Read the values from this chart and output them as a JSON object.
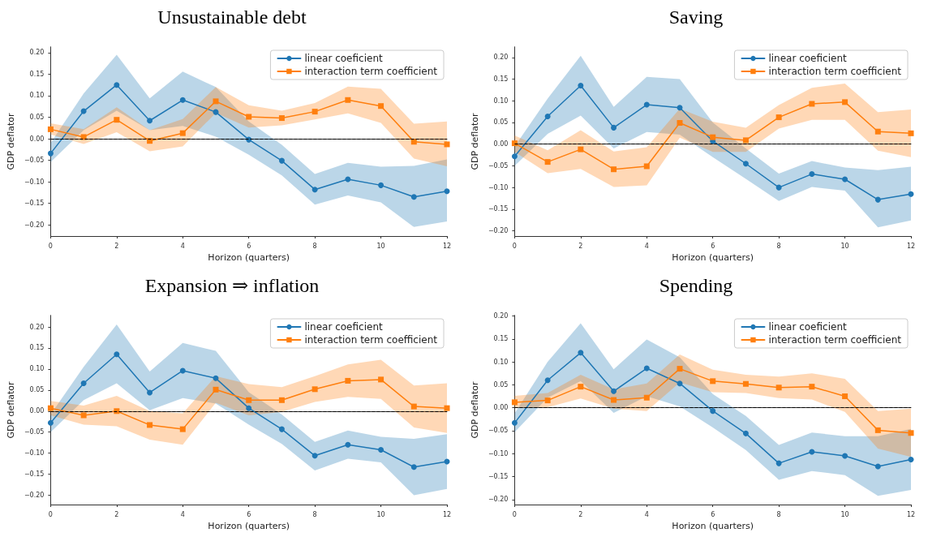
{
  "chart_data": [
    {
      "type": "line",
      "title": "Unsustainable debt",
      "xlabel": "Horizon (quarters)",
      "ylabel": "GDP deflator",
      "x": [
        0,
        1,
        2,
        3,
        4,
        5,
        6,
        7,
        8,
        9,
        10,
        11,
        12
      ],
      "xlim": [
        0,
        12
      ],
      "xticks": [
        0,
        2,
        4,
        6,
        8,
        10,
        12
      ],
      "ylim": [
        -0.226,
        0.213
      ],
      "yticks": [
        {
          "value": -0.2,
          "label": "−0.20"
        },
        {
          "value": -0.15,
          "label": "−0.15"
        },
        {
          "value": -0.1,
          "label": "−0.10"
        },
        {
          "value": -0.05,
          "label": "−0.05"
        },
        {
          "value": 0,
          "label": "0.00"
        },
        {
          "value": 0.05,
          "label": "0.05"
        },
        {
          "value": 0.1,
          "label": "0.10"
        },
        {
          "value": 0.15,
          "label": "0.15"
        },
        {
          "value": 0.2,
          "label": "0.20"
        }
      ],
      "legend": "top right",
      "grid": false,
      "line_style": "solid",
      "ref_lines": [
        {
          "axis": "y",
          "value": 0,
          "color": "#000000",
          "line_style": "dashed"
        }
      ],
      "series": [
        {
          "name": "linear coeficient",
          "color": "#1f77b4",
          "marker": "circle",
          "values": [
            -0.034,
            0.064,
            0.125,
            0.042,
            0.09,
            0.062,
            -0.002,
            -0.051,
            -0.118,
            -0.094,
            -0.108,
            -0.135,
            -0.122
          ],
          "lower": [
            -0.054,
            0.02,
            0.065,
            0.02,
            0.03,
            0.005,
            -0.037,
            -0.085,
            -0.153,
            -0.132,
            -0.148,
            -0.205,
            -0.192
          ],
          "upper": [
            -0.01,
            0.105,
            0.195,
            0.094,
            0.156,
            0.12,
            0.04,
            -0.014,
            -0.082,
            -0.056,
            -0.065,
            -0.063,
            -0.048
          ]
        },
        {
          "name": "interaction term coefficient",
          "color": "#ff7f0e",
          "marker": "square",
          "values": [
            0.022,
            0.004,
            0.044,
            -0.005,
            0.013,
            0.087,
            0.051,
            0.048,
            0.063,
            0.09,
            0.076,
            -0.007,
            -0.013
          ],
          "lower": [
            0.01,
            -0.012,
            0.015,
            -0.029,
            -0.018,
            0.06,
            0.026,
            0.031,
            0.045,
            0.059,
            0.037,
            -0.046,
            -0.064
          ],
          "upper": [
            0.036,
            0.022,
            0.073,
            0.02,
            0.046,
            0.12,
            0.078,
            0.065,
            0.083,
            0.121,
            0.116,
            0.035,
            0.04
          ]
        }
      ]
    },
    {
      "type": "line",
      "title": "Saving",
      "xlabel": "Horizon (quarters)",
      "ylabel": "GDP deflator",
      "x": [
        0,
        1,
        2,
        3,
        4,
        5,
        6,
        7,
        8,
        9,
        10,
        11,
        12
      ],
      "xlim": [
        0,
        12
      ],
      "xticks": [
        0,
        2,
        4,
        6,
        8,
        10,
        12
      ],
      "ylim": [
        -0.212,
        0.224
      ],
      "yticks": [
        {
          "value": -0.2,
          "label": "−0.20"
        },
        {
          "value": -0.15,
          "label": "−0.15"
        },
        {
          "value": -0.1,
          "label": "−0.10"
        },
        {
          "value": -0.05,
          "label": "−0.05"
        },
        {
          "value": 0,
          "label": "0.00"
        },
        {
          "value": 0.05,
          "label": "0.05"
        },
        {
          "value": 0.1,
          "label": "0.10"
        },
        {
          "value": 0.15,
          "label": "0.15"
        },
        {
          "value": 0.2,
          "label": "0.20"
        }
      ],
      "legend": "top right",
      "grid": false,
      "line_style": "solid",
      "ref_lines": [
        {
          "axis": "y",
          "value": 0,
          "color": "#000000",
          "line_style": "dashed"
        }
      ],
      "series": [
        {
          "name": "linear coeficient",
          "color": "#1f77b4",
          "marker": "circle",
          "values": [
            -0.028,
            0.064,
            0.135,
            0.038,
            0.091,
            0.084,
            0.007,
            -0.045,
            -0.1,
            -0.069,
            -0.081,
            -0.128,
            -0.115
          ],
          "lower": [
            -0.05,
            0.024,
            0.066,
            -0.01,
            0.028,
            0.022,
            -0.03,
            -0.08,
            -0.131,
            -0.099,
            -0.107,
            -0.192,
            -0.176
          ],
          "upper": [
            -0.005,
            0.105,
            0.204,
            0.086,
            0.155,
            0.15,
            0.05,
            -0.01,
            -0.068,
            -0.039,
            -0.054,
            -0.06,
            -0.052
          ]
        },
        {
          "name": "interaction term coefficient",
          "color": "#ff7f0e",
          "marker": "square",
          "values": [
            0.002,
            -0.041,
            -0.012,
            -0.058,
            -0.051,
            0.049,
            0.016,
            0.009,
            0.062,
            0.093,
            0.097,
            0.029,
            0.025
          ],
          "lower": [
            -0.018,
            -0.067,
            -0.057,
            -0.099,
            -0.095,
            0.015,
            -0.018,
            -0.018,
            0.036,
            0.056,
            0.056,
            -0.015,
            -0.03
          ],
          "upper": [
            0.02,
            -0.014,
            0.032,
            -0.017,
            -0.007,
            0.082,
            0.052,
            0.038,
            0.09,
            0.13,
            0.14,
            0.074,
            0.08
          ]
        }
      ]
    },
    {
      "type": "line",
      "title": "Expansion ⇒ inflation",
      "xlabel": "Horizon (quarters)",
      "ylabel": "GDP deflator",
      "x": [
        0,
        1,
        2,
        3,
        4,
        5,
        6,
        7,
        8,
        9,
        10,
        11,
        12
      ],
      "xlim": [
        0,
        12
      ],
      "xticks": [
        0,
        2,
        4,
        6,
        8,
        10,
        12
      ],
      "ylim": [
        -0.222,
        0.227
      ],
      "yticks": [
        {
          "value": -0.2,
          "label": "−0.20"
        },
        {
          "value": -0.15,
          "label": "−0.15"
        },
        {
          "value": -0.1,
          "label": "−0.10"
        },
        {
          "value": -0.05,
          "label": "−0.05"
        },
        {
          "value": 0,
          "label": "0.00"
        },
        {
          "value": 0.05,
          "label": "0.05"
        },
        {
          "value": 0.1,
          "label": "0.10"
        },
        {
          "value": 0.15,
          "label": "0.15"
        },
        {
          "value": 0.2,
          "label": "0.20"
        }
      ],
      "legend": "top right",
      "grid": false,
      "line_style": "solid",
      "ref_lines": [
        {
          "axis": "y",
          "value": 0,
          "color": "#000000",
          "line_style": "dashed"
        }
      ],
      "series": [
        {
          "name": "linear coeficient",
          "color": "#1f77b4",
          "marker": "circle",
          "values": [
            -0.028,
            0.066,
            0.135,
            0.044,
            0.096,
            0.078,
            0.007,
            -0.043,
            -0.106,
            -0.08,
            -0.092,
            -0.133,
            -0.12
          ],
          "lower": [
            -0.05,
            0.026,
            0.066,
            0.002,
            0.031,
            0.018,
            -0.032,
            -0.078,
            -0.141,
            -0.113,
            -0.122,
            -0.2,
            -0.185
          ],
          "upper": [
            -0.008,
            0.105,
            0.206,
            0.094,
            0.162,
            0.143,
            0.045,
            -0.008,
            -0.073,
            -0.046,
            -0.061,
            -0.066,
            -0.055
          ]
        },
        {
          "name": "interaction term coefficient",
          "color": "#ff7f0e",
          "marker": "square",
          "values": [
            0.007,
            -0.01,
            0.0,
            -0.033,
            -0.043,
            0.051,
            0.026,
            0.026,
            0.052,
            0.072,
            0.075,
            0.011,
            0.007
          ],
          "lower": [
            -0.01,
            -0.032,
            -0.036,
            -0.068,
            -0.08,
            0.02,
            -0.01,
            -0.002,
            0.022,
            0.034,
            0.029,
            -0.039,
            -0.052
          ],
          "upper": [
            0.024,
            0.013,
            0.036,
            0.0,
            -0.005,
            0.083,
            0.064,
            0.057,
            0.083,
            0.111,
            0.122,
            0.061,
            0.066
          ]
        }
      ]
    },
    {
      "type": "line",
      "title": "Spending",
      "xlabel": "Horizon (quarters)",
      "ylabel": "GDP deflator",
      "x": [
        0,
        1,
        2,
        3,
        4,
        5,
        6,
        7,
        8,
        9,
        10,
        11,
        12
      ],
      "xlim": [
        0,
        12
      ],
      "xticks": [
        0,
        2,
        4,
        6,
        8,
        10,
        12
      ],
      "ylim": [
        -0.211,
        0.201
      ],
      "yticks": [
        {
          "value": -0.2,
          "label": "−0.20"
        },
        {
          "value": -0.15,
          "label": "−0.15"
        },
        {
          "value": -0.1,
          "label": "−0.10"
        },
        {
          "value": -0.05,
          "label": "−0.05"
        },
        {
          "value": 0,
          "label": "0.00"
        },
        {
          "value": 0.05,
          "label": "0.05"
        },
        {
          "value": 0.1,
          "label": "0.10"
        },
        {
          "value": 0.15,
          "label": "0.15"
        },
        {
          "value": 0.2,
          "label": "0.20"
        }
      ],
      "legend": "top right",
      "grid": false,
      "line_style": "solid",
      "ref_lines": [
        {
          "axis": "y",
          "value": 0,
          "color": "#000000",
          "line_style": "dashed"
        }
      ],
      "series": [
        {
          "name": "linear coeficient",
          "color": "#1f77b4",
          "marker": "circle",
          "values": [
            -0.033,
            0.06,
            0.12,
            0.036,
            0.086,
            0.053,
            -0.007,
            -0.056,
            -0.121,
            -0.096,
            -0.105,
            -0.128,
            -0.113
          ],
          "lower": [
            -0.053,
            0.022,
            0.058,
            -0.011,
            0.025,
            0.003,
            -0.043,
            -0.092,
            -0.157,
            -0.138,
            -0.147,
            -0.192,
            -0.179
          ],
          "upper": [
            -0.012,
            0.1,
            0.184,
            0.084,
            0.149,
            0.11,
            0.03,
            -0.018,
            -0.081,
            -0.054,
            -0.062,
            -0.062,
            -0.046
          ]
        },
        {
          "name": "interaction term coefficient",
          "color": "#ff7f0e",
          "marker": "square",
          "values": [
            0.012,
            0.016,
            0.046,
            0.017,
            0.022,
            0.085,
            0.058,
            0.052,
            0.044,
            0.046,
            0.025,
            -0.049,
            -0.055
          ],
          "lower": [
            0.0,
            0.001,
            0.02,
            -0.002,
            -0.007,
            0.055,
            0.034,
            0.032,
            0.021,
            0.018,
            -0.009,
            -0.089,
            -0.107
          ],
          "upper": [
            0.026,
            0.032,
            0.072,
            0.04,
            0.053,
            0.116,
            0.083,
            0.072,
            0.068,
            0.075,
            0.063,
            -0.007,
            -0.002
          ]
        }
      ]
    }
  ]
}
